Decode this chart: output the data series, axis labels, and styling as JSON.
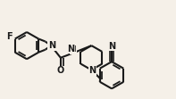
{
  "bg_color": "#f5f0e8",
  "line_color": "#1a1a1a",
  "line_width": 1.5,
  "font_size_atoms": 7.0,
  "fig_width": 1.97,
  "fig_height": 1.11,
  "dpi": 100,
  "xlim": [
    0,
    1.97
  ],
  "ylim": [
    0,
    1.11
  ]
}
